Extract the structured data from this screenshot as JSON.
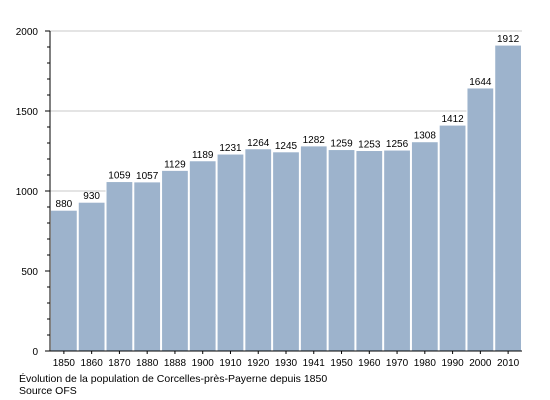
{
  "chart_data": {
    "type": "bar",
    "categories": [
      "1850",
      "1860",
      "1870",
      "1880",
      "1888",
      "1900",
      "1910",
      "1920",
      "1930",
      "1941",
      "1950",
      "1960",
      "1970",
      "1980",
      "1990",
      "2000",
      "2010"
    ],
    "values": [
      880,
      930,
      1059,
      1057,
      1129,
      1189,
      1231,
      1264,
      1245,
      1282,
      1259,
      1253,
      1256,
      1308,
      1412,
      1644,
      1912
    ],
    "ylim": [
      0,
      2000
    ],
    "yticks": [
      0,
      500,
      1000,
      1500,
      2000
    ],
    "grid": "horizontal",
    "bar_color": "#9db3cc",
    "bar_edge_color": "#ffffff"
  },
  "caption": {
    "line1": "Évolution de la population de Corcelles-près-Payerne depuis 1850",
    "line2": "Source OFS"
  }
}
